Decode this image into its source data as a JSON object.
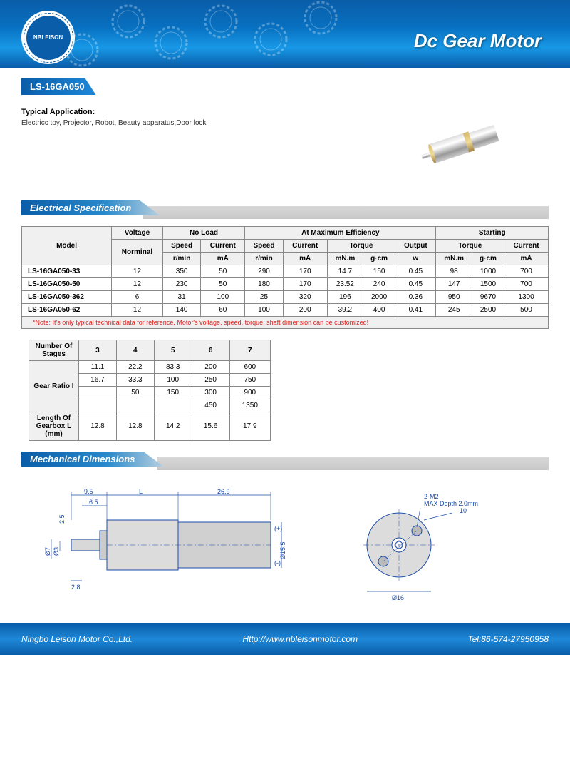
{
  "banner": {
    "title": "Dc Gear Motor",
    "logo_text": "NBLEISON"
  },
  "model_tab": "LS-16GA050",
  "application": {
    "label": "Typical Application:",
    "text": "Electricc toy, Projector, Robot, Beauty apparatus,Door lock"
  },
  "section_elec": "Electrical Specification",
  "spec_table": {
    "headers": {
      "model": "Model",
      "voltage": "Voltage",
      "noload": "No Load",
      "maxeff": "At Maximum Efficiency",
      "starting": "Starting",
      "nominal": "Norminal",
      "speed": "Speed",
      "current": "Current",
      "torque": "Torque",
      "output": "Output",
      "rmin": "r/min",
      "ma": "mA",
      "mnm": "mN.m",
      "gcm": "g·cm",
      "w": "w"
    },
    "rows": [
      {
        "model": "LS-16GA050-33",
        "v": "12",
        "nls": "350",
        "nlc": "50",
        "mes": "290",
        "mec": "170",
        "met_mn": "14.7",
        "met_g": "150",
        "meo": "0.45",
        "st_mn": "98",
        "st_g": "1000",
        "stc": "700"
      },
      {
        "model": "LS-16GA050-50",
        "v": "12",
        "nls": "230",
        "nlc": "50",
        "mes": "180",
        "mec": "170",
        "met_mn": "23.52",
        "met_g": "240",
        "meo": "0.45",
        "st_mn": "147",
        "st_g": "1500",
        "stc": "700"
      },
      {
        "model": "LS-16GA050-362",
        "v": "6",
        "nls": "31",
        "nlc": "100",
        "mes": "25",
        "mec": "320",
        "met_mn": "196",
        "met_g": "2000",
        "meo": "0.36",
        "st_mn": "950",
        "st_g": "9670",
        "stc": "1300"
      },
      {
        "model": "LS-16GA050-62",
        "v": "12",
        "nls": "140",
        "nlc": "60",
        "mes": "100",
        "mec": "200",
        "met_mn": "39.2",
        "met_g": "400",
        "meo": "0.41",
        "st_mn": "245",
        "st_g": "2500",
        "stc": "500"
      }
    ],
    "note": "*Note: It's only typical technical data for reference, Motor's voltage, speed, torque, shaft dimension can be customized!"
  },
  "ratio_table": {
    "h_stages": "Number Of Stages",
    "h_ratio": "Gear Ratio I",
    "h_length": "Length Of Gearbox L (mm)",
    "stages": [
      "3",
      "4",
      "5",
      "6",
      "7"
    ],
    "ratios": [
      [
        "11.1",
        "22.2",
        "83.3",
        "200",
        "600"
      ],
      [
        "16.7",
        "33.3",
        "100",
        "250",
        "750"
      ],
      [
        "",
        "50",
        "150",
        "300",
        "900"
      ],
      [
        "",
        "",
        "",
        "450",
        "1350"
      ]
    ],
    "lengths": [
      "12.8",
      "12.8",
      "14.2",
      "15.6",
      "17.9"
    ]
  },
  "section_mech": "Mechanical Dimensions",
  "mech_dims": {
    "d1": "9.5",
    "d2": "L",
    "d3": "26.9",
    "d4": "6.5",
    "d5": "2.5",
    "d6": "Ø7",
    "d7": "Ø3",
    "d8": "2.8",
    "d9": "Ø15.5",
    "d10": "Ø16",
    "d11": "2-M2",
    "d12": "MAX Depth 2.0mm",
    "d13": "10",
    "plus": "(+)",
    "minus": "(-)"
  },
  "footer": {
    "company": "Ningbo Leison Motor Co.,Ltd.",
    "url": "Http://www.nbleisonmotor.com",
    "tel": "Tel:86-574-27950958"
  }
}
